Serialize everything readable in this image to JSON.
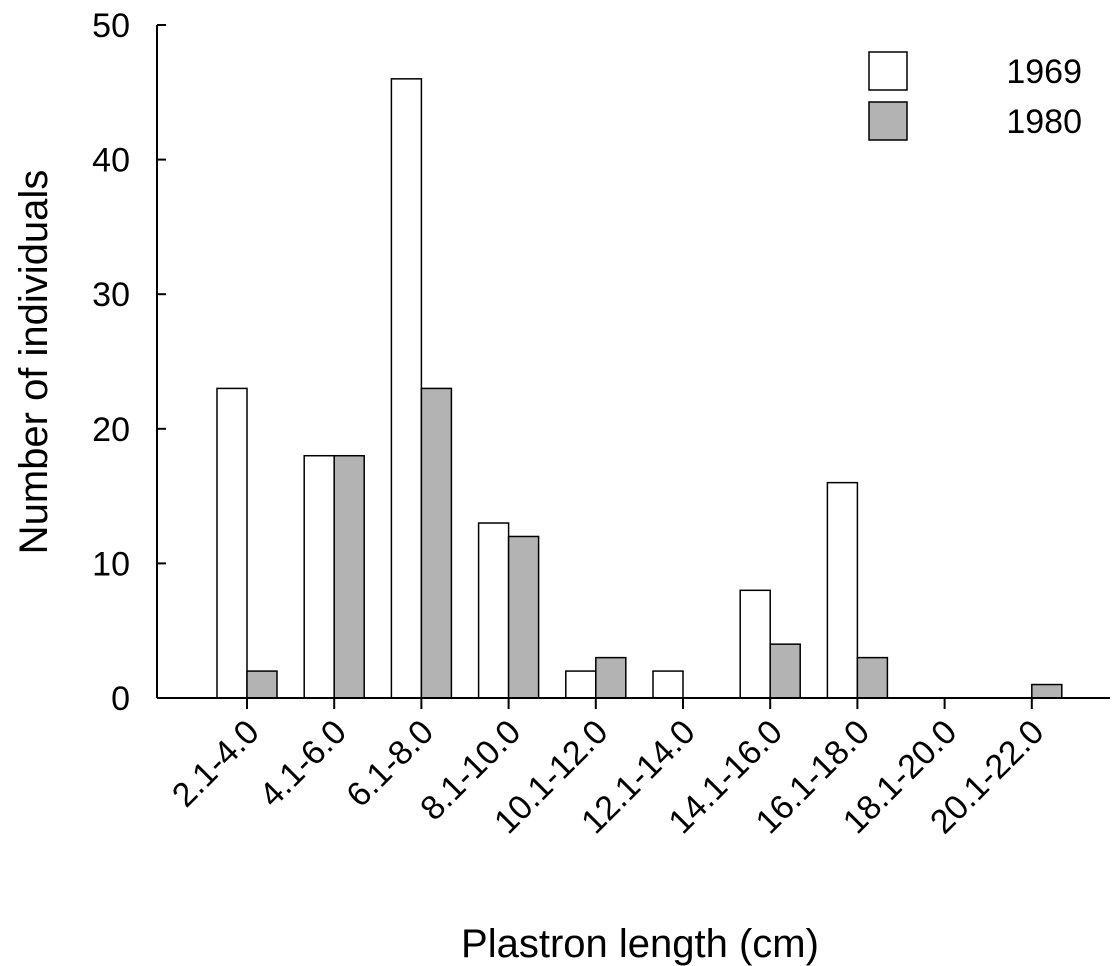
{
  "chart_data": {
    "type": "bar",
    "title": "",
    "xlabel": "Plastron length (cm)",
    "ylabel": "Number of individuals",
    "ylim": [
      0,
      50
    ],
    "yticks": [
      "0",
      "10",
      "20",
      "30",
      "40",
      "50"
    ],
    "categories": [
      "2.1-4.0",
      "4.1-6.0",
      "6.1-8.0",
      "8.1-10.0",
      "10.1-12.0",
      "12.1-14.0",
      "14.1-16.0",
      "16.1-18.0",
      "18.1-20.0",
      "20.1-22.0"
    ],
    "series": [
      {
        "name": "1969",
        "color": "#ffffff",
        "values": [
          23,
          18,
          46,
          13,
          2,
          2,
          8,
          16,
          0,
          0
        ]
      },
      {
        "name": "1980",
        "color": "#b3b3b3",
        "values": [
          2,
          18,
          23,
          12,
          3,
          0,
          4,
          3,
          0,
          1
        ]
      }
    ],
    "grid": false,
    "legend": "top-right"
  }
}
